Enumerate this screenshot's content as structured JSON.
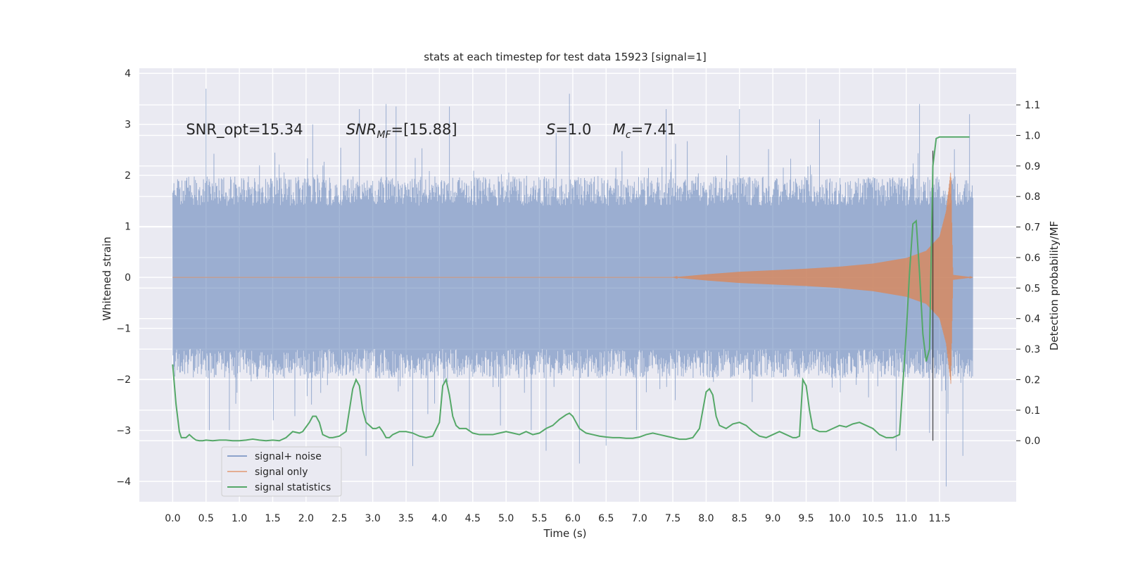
{
  "chart_data": {
    "type": "line",
    "title": "stats at each timestep for test data 15923 [signal=1]",
    "xlabel": "Time (s)",
    "ylabel": "Whitened strain",
    "y2label": "Detection probability/MF",
    "xlim": [
      -0.5,
      12.65
    ],
    "ylim": [
      -4.4,
      4.1
    ],
    "y2lim": [
      -0.2,
      1.22
    ],
    "x_ticks": [
      0.0,
      0.5,
      1.0,
      1.5,
      2.0,
      2.5,
      3.0,
      3.5,
      4.0,
      4.5,
      5.0,
      5.5,
      6.0,
      6.5,
      7.0,
      7.5,
      8.0,
      8.5,
      9.0,
      9.5,
      10.0,
      10.5,
      11.0,
      11.5
    ],
    "x_tick_labels": [
      "0.0",
      "0.5",
      "1.0",
      "1.5",
      "2.0",
      "2.5",
      "3.0",
      "3.5",
      "4.0",
      "4.5",
      "5.0",
      "5.5",
      "6.0",
      "6.5",
      "7.0",
      "7.5",
      "8.0",
      "8.5",
      "9.0",
      "9.5",
      "10.0",
      "10.5",
      "11.0",
      "11.5"
    ],
    "y_ticks": [
      -4,
      -3,
      -2,
      -1,
      0,
      1,
      2,
      3,
      4
    ],
    "y_tick_labels": [
      "−4",
      "−3",
      "−2",
      "−1",
      "0",
      "1",
      "2",
      "3",
      "4"
    ],
    "y2_ticks": [
      0.0,
      0.1,
      0.2,
      0.3,
      0.4,
      0.5,
      0.6,
      0.7,
      0.8,
      0.9,
      1.0,
      1.1
    ],
    "y2_tick_labels": [
      "0.0",
      "0.1",
      "0.2",
      "0.3",
      "0.4",
      "0.5",
      "0.6",
      "0.7",
      "0.8",
      "0.9",
      "1.0",
      "1.1"
    ],
    "grid": true,
    "legend_position": "lower-left",
    "annotations": [
      {
        "text": "SNR_opt=15.34",
        "x": 0.2,
        "y": 2.9
      },
      {
        "text": "SNR_MF=[15.88]",
        "x": 2.6,
        "y": 2.9
      },
      {
        "text": "S=1.0",
        "x": 5.6,
        "y": 2.9
      },
      {
        "text": "M_c=7.41",
        "x": 6.6,
        "y": 2.9
      }
    ],
    "vertical_line": {
      "x": 11.4,
      "y_from": 0.0,
      "y_to": 0.95
    },
    "series": [
      {
        "name": "signal+ noise",
        "axis": "left",
        "color": "#4c72b0",
        "alpha": 0.5,
        "t_range": [
          0.0,
          12.0
        ],
        "envelope_abs": 1.65,
        "peak_spikes": [
          [
            0.5,
            3.7
          ],
          [
            0.55,
            -3.0
          ],
          [
            0.85,
            -3.0
          ],
          [
            2.1,
            3.0
          ],
          [
            2.8,
            3.3
          ],
          [
            2.9,
            -3.5
          ],
          [
            3.2,
            3.4
          ],
          [
            3.35,
            3.35
          ],
          [
            3.6,
            -3.7
          ],
          [
            4.15,
            3.35
          ],
          [
            4.45,
            -3.0
          ],
          [
            5.6,
            -3.4
          ],
          [
            5.95,
            3.6
          ],
          [
            6.1,
            -3.65
          ],
          [
            6.5,
            -3.3
          ],
          [
            7.4,
            3.3
          ],
          [
            8.5,
            3.3
          ],
          [
            9.7,
            3.1
          ],
          [
            10.85,
            -3.4
          ],
          [
            11.2,
            3.4
          ],
          [
            11.35,
            -3.05
          ],
          [
            11.6,
            -4.1
          ],
          [
            11.85,
            -3.5
          ],
          [
            11.95,
            3.2
          ]
        ]
      },
      {
        "name": "signal only",
        "axis": "left",
        "color": "#dd8452",
        "alpha": 0.5,
        "t_range": [
          0.0,
          12.0
        ],
        "chirp_start": 7.5,
        "merger": 11.67,
        "peak_amplitude": 2.1,
        "envelope_points": [
          [
            7.5,
            0.0
          ],
          [
            8.0,
            0.06
          ],
          [
            8.5,
            0.11
          ],
          [
            9.0,
            0.14
          ],
          [
            9.5,
            0.17
          ],
          [
            10.0,
            0.21
          ],
          [
            10.5,
            0.27
          ],
          [
            11.0,
            0.38
          ],
          [
            11.3,
            0.52
          ],
          [
            11.5,
            0.8
          ],
          [
            11.6,
            1.3
          ],
          [
            11.67,
            2.1
          ],
          [
            11.7,
            0.05
          ],
          [
            12.0,
            0.0
          ]
        ]
      },
      {
        "name": "signal statistics",
        "axis": "right",
        "color": "#55a868",
        "alpha": 1.0,
        "x": [
          0.0,
          0.05,
          0.1,
          0.13,
          0.2,
          0.25,
          0.3,
          0.35,
          0.4,
          0.45,
          0.5,
          0.6,
          0.7,
          0.8,
          0.9,
          1.0,
          1.1,
          1.2,
          1.3,
          1.4,
          1.5,
          1.6,
          1.7,
          1.8,
          1.9,
          1.95,
          2.05,
          2.1,
          2.15,
          2.2,
          2.25,
          2.3,
          2.35,
          2.4,
          2.5,
          2.6,
          2.7,
          2.75,
          2.8,
          2.85,
          2.9,
          2.95,
          3.0,
          3.05,
          3.1,
          3.15,
          3.2,
          3.25,
          3.3,
          3.4,
          3.5,
          3.6,
          3.7,
          3.8,
          3.9,
          4.0,
          4.05,
          4.1,
          4.15,
          4.2,
          4.25,
          4.3,
          4.4,
          4.5,
          4.6,
          4.7,
          4.8,
          4.9,
          5.0,
          5.1,
          5.2,
          5.3,
          5.4,
          5.5,
          5.6,
          5.7,
          5.8,
          5.9,
          5.95,
          6.0,
          6.05,
          6.1,
          6.2,
          6.3,
          6.4,
          6.5,
          6.6,
          6.7,
          6.8,
          6.9,
          7.0,
          7.1,
          7.2,
          7.3,
          7.4,
          7.5,
          7.6,
          7.7,
          7.8,
          7.9,
          7.95,
          8.0,
          8.05,
          8.1,
          8.15,
          8.2,
          8.3,
          8.4,
          8.5,
          8.6,
          8.7,
          8.8,
          8.9,
          9.0,
          9.1,
          9.2,
          9.3,
          9.35,
          9.4,
          9.45,
          9.5,
          9.55,
          9.6,
          9.7,
          9.8,
          9.9,
          10.0,
          10.1,
          10.2,
          10.3,
          10.4,
          10.5,
          10.6,
          10.7,
          10.8,
          10.9,
          11.0,
          11.05,
          11.1,
          11.15,
          11.2,
          11.25,
          11.3,
          11.35,
          11.4,
          11.45,
          11.5,
          11.6,
          11.7,
          11.8,
          11.9,
          11.95
        ],
        "y": [
          0.25,
          0.12,
          0.03,
          0.01,
          0.01,
          0.02,
          0.01,
          0.002,
          0.0,
          0.0,
          0.002,
          0.0,
          0.002,
          0.002,
          0.0,
          0.0,
          0.002,
          0.005,
          0.002,
          0.0,
          0.002,
          0.0,
          0.01,
          0.03,
          0.025,
          0.03,
          0.06,
          0.08,
          0.08,
          0.06,
          0.02,
          0.015,
          0.01,
          0.01,
          0.015,
          0.03,
          0.17,
          0.2,
          0.18,
          0.1,
          0.06,
          0.05,
          0.04,
          0.04,
          0.045,
          0.03,
          0.01,
          0.01,
          0.02,
          0.03,
          0.03,
          0.025,
          0.015,
          0.01,
          0.015,
          0.06,
          0.18,
          0.2,
          0.15,
          0.08,
          0.05,
          0.04,
          0.04,
          0.025,
          0.02,
          0.02,
          0.02,
          0.025,
          0.03,
          0.025,
          0.02,
          0.03,
          0.02,
          0.025,
          0.04,
          0.05,
          0.07,
          0.085,
          0.09,
          0.08,
          0.06,
          0.04,
          0.025,
          0.02,
          0.015,
          0.012,
          0.01,
          0.01,
          0.008,
          0.008,
          0.012,
          0.02,
          0.025,
          0.02,
          0.015,
          0.01,
          0.005,
          0.005,
          0.01,
          0.04,
          0.1,
          0.16,
          0.17,
          0.15,
          0.08,
          0.05,
          0.04,
          0.055,
          0.06,
          0.05,
          0.03,
          0.015,
          0.01,
          0.02,
          0.03,
          0.02,
          0.01,
          0.01,
          0.015,
          0.2,
          0.18,
          0.1,
          0.04,
          0.03,
          0.03,
          0.04,
          0.05,
          0.045,
          0.055,
          0.06,
          0.05,
          0.04,
          0.02,
          0.01,
          0.01,
          0.02,
          0.35,
          0.55,
          0.71,
          0.72,
          0.55,
          0.35,
          0.26,
          0.3,
          0.9,
          0.99,
          0.995,
          0.995,
          0.995,
          0.995,
          0.995,
          0.995
        ]
      }
    ]
  }
}
